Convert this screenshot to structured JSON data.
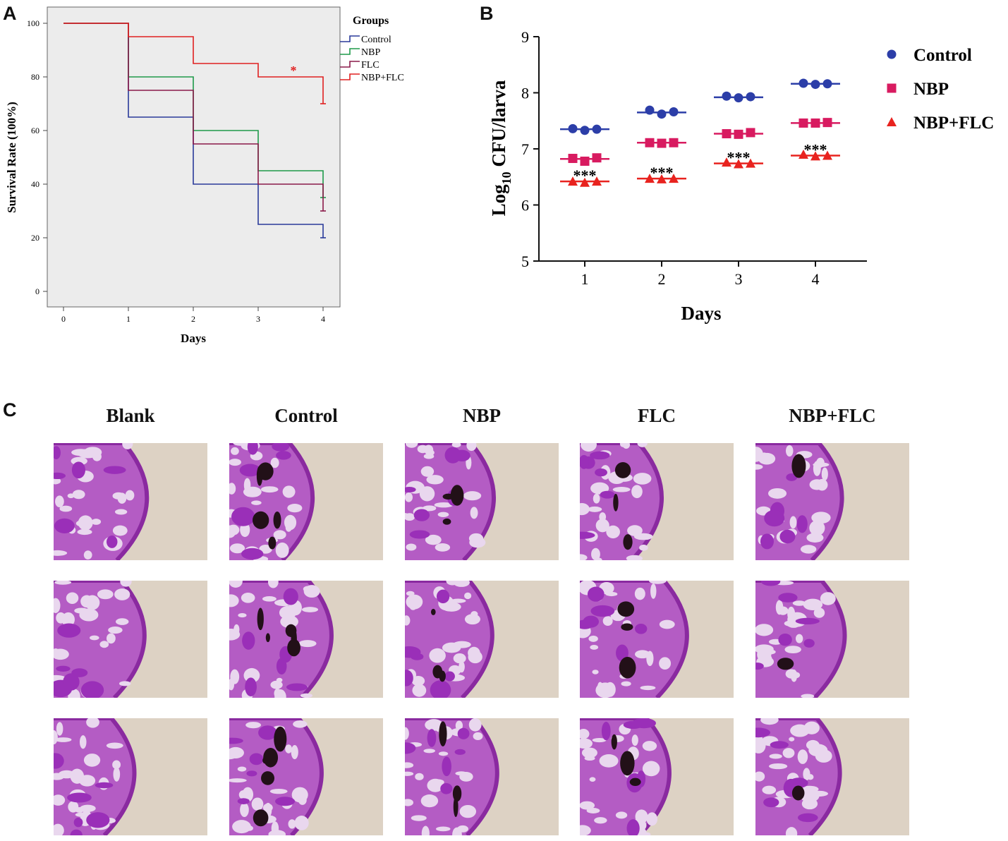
{
  "panels": {
    "a": "A",
    "b": "B",
    "c": "C"
  },
  "chart_data": [
    {
      "type": "line",
      "subtype": "kaplan-meier step",
      "panel": "A",
      "title": "",
      "xlabel": "Days",
      "ylabel": "Survival Rate (100%)",
      "xlim": [
        0,
        4
      ],
      "ylim": [
        0,
        100
      ],
      "xticks": [
        "0",
        "1",
        "2",
        "3",
        "4"
      ],
      "yticks": [
        "0",
        "20",
        "40",
        "60",
        "80",
        "100"
      ],
      "legend_title": "Groups",
      "legend_position": "top-right outside",
      "annotation": "*",
      "series": [
        {
          "name": "Control",
          "color": "#2a3a9a",
          "x": [
            0,
            1,
            2,
            3,
            4
          ],
          "values": [
            100,
            65,
            40,
            25,
            20
          ]
        },
        {
          "name": "NBP",
          "color": "#1e9a4a",
          "x": [
            0,
            1,
            2,
            3,
            4
          ],
          "values": [
            100,
            80,
            60,
            45,
            35
          ]
        },
        {
          "name": "FLC",
          "color": "#8a1a4a",
          "x": [
            0,
            1,
            2,
            3,
            4
          ],
          "values": [
            100,
            75,
            55,
            40,
            30
          ]
        },
        {
          "name": "NBP+FLC",
          "color": "#e02020",
          "x": [
            0,
            1,
            2,
            3,
            4
          ],
          "values": [
            100,
            95,
            85,
            80,
            70
          ]
        }
      ]
    },
    {
      "type": "scatter",
      "panel": "B",
      "title": "",
      "xlabel": "Days",
      "ylabel_prefix": "Log",
      "ylabel_sub": "10",
      "ylabel_suffix": " CFU/larva",
      "categories": [
        "1",
        "2",
        "3",
        "4"
      ],
      "ylim": [
        5,
        9
      ],
      "yticks": [
        "5",
        "6",
        "7",
        "8",
        "9"
      ],
      "legend_position": "right",
      "significance": "***",
      "series": [
        {
          "name": "Control",
          "color": "#2c3ea8",
          "marker": "circle",
          "points": [
            [
              7.36,
              7.33,
              7.35
            ],
            [
              7.69,
              7.62,
              7.66
            ],
            [
              7.94,
              7.91,
              7.93
            ],
            [
              8.17,
              8.15,
              8.16
            ]
          ],
          "mean": [
            7.35,
            7.65,
            7.92,
            8.16
          ]
        },
        {
          "name": "NBP",
          "color": "#d81b60",
          "marker": "square",
          "points": [
            [
              6.83,
              6.78,
              6.84
            ],
            [
              7.11,
              7.1,
              7.11
            ],
            [
              7.27,
              7.26,
              7.29
            ],
            [
              7.46,
              7.46,
              7.47
            ]
          ],
          "mean": [
            6.82,
            7.11,
            7.27,
            7.46
          ]
        },
        {
          "name": "NBP+FLC",
          "color": "#e8231f",
          "marker": "triangle",
          "points": [
            [
              6.42,
              6.4,
              6.42
            ],
            [
              6.47,
              6.46,
              6.47
            ],
            [
              6.76,
              6.73,
              6.74
            ],
            [
              6.9,
              6.87,
              6.88
            ]
          ],
          "mean": [
            6.42,
            6.47,
            6.74,
            6.88
          ]
        }
      ]
    }
  ],
  "histology": {
    "columns": [
      "Blank",
      "Control",
      "NBP",
      "FLC",
      "NBP+FLC"
    ],
    "rows": 3
  }
}
